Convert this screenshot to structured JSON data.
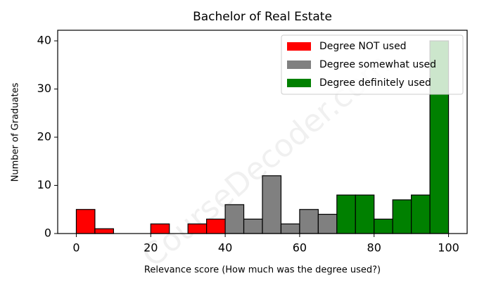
{
  "chart_data": {
    "type": "histogram",
    "title": "Bachelor of Real Estate",
    "x_label": "Relevance score (How much was the degree used?)",
    "y_label": "Number of Graduates",
    "watermark": "CourseDecoder.com",
    "xlim": [
      -5,
      105
    ],
    "xticks": [
      0,
      20,
      40,
      60,
      80,
      100
    ],
    "ylim": [
      0,
      42.2
    ],
    "yticks": [
      0,
      10,
      20,
      30,
      40
    ],
    "legend": "upper right",
    "series": [
      {
        "name": "Degree NOT used",
        "color": "#ff0000",
        "bins": [
          0,
          5,
          10,
          15,
          20,
          25,
          30,
          35,
          40
        ],
        "values": [
          5,
          1,
          0,
          0,
          2,
          0,
          2,
          3
        ]
      },
      {
        "name": "Degree somewhat used",
        "color": "#808080",
        "bins": [
          40,
          45,
          50,
          55,
          60,
          65,
          70
        ],
        "values": [
          6,
          3,
          12,
          2,
          5,
          4
        ]
      },
      {
        "name": "Degree definitely used",
        "color": "#008000",
        "bins": [
          70,
          75,
          80,
          85,
          90,
          95,
          100
        ],
        "values": [
          8,
          8,
          3,
          7,
          8,
          40
        ]
      }
    ]
  }
}
